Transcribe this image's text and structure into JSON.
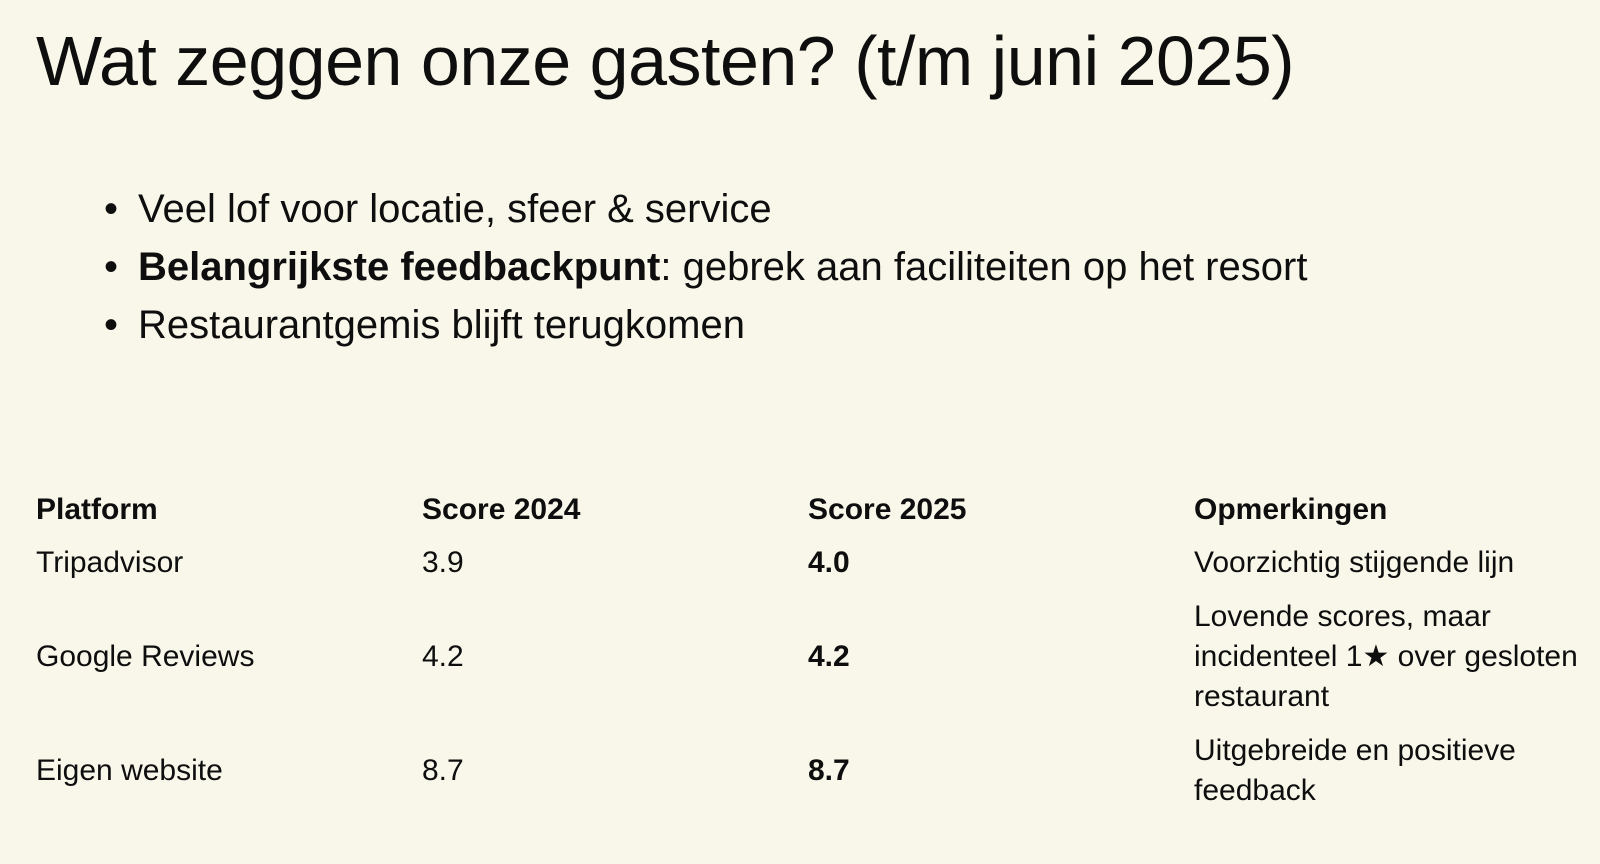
{
  "title": "Wat zeggen onze gasten? (t/m juni 2025)",
  "bullets": [
    {
      "bold": "",
      "text": "Veel lof voor locatie, sfeer & service"
    },
    {
      "bold": "Belangrijkste feedbackpunt",
      "text": ": gebrek aan faciliteiten op het resort"
    },
    {
      "bold": "",
      "text": "Restaurantgemis blijft terugkomen"
    }
  ],
  "table": {
    "headers": [
      "Platform",
      "Score 2024",
      "Score 2025",
      "Opmerkingen"
    ],
    "rows": [
      {
        "platform": "Tripadvisor",
        "score_2024": "3.9",
        "score_2025": "4.0",
        "remark": "Voorzichtig stijgende lijn"
      },
      {
        "platform": "Google Reviews",
        "score_2024": "4.2",
        "score_2025": "4.2",
        "remark": "Lovende scores, maar incidenteel 1★ over gesloten restaurant"
      },
      {
        "platform": "Eigen website",
        "score_2024": "8.7",
        "score_2025": "8.7",
        "remark": "Uitgebreide en positieve feedback"
      }
    ]
  },
  "colors": {
    "background": "#f9f7ea",
    "text": "#0e0e0e"
  }
}
